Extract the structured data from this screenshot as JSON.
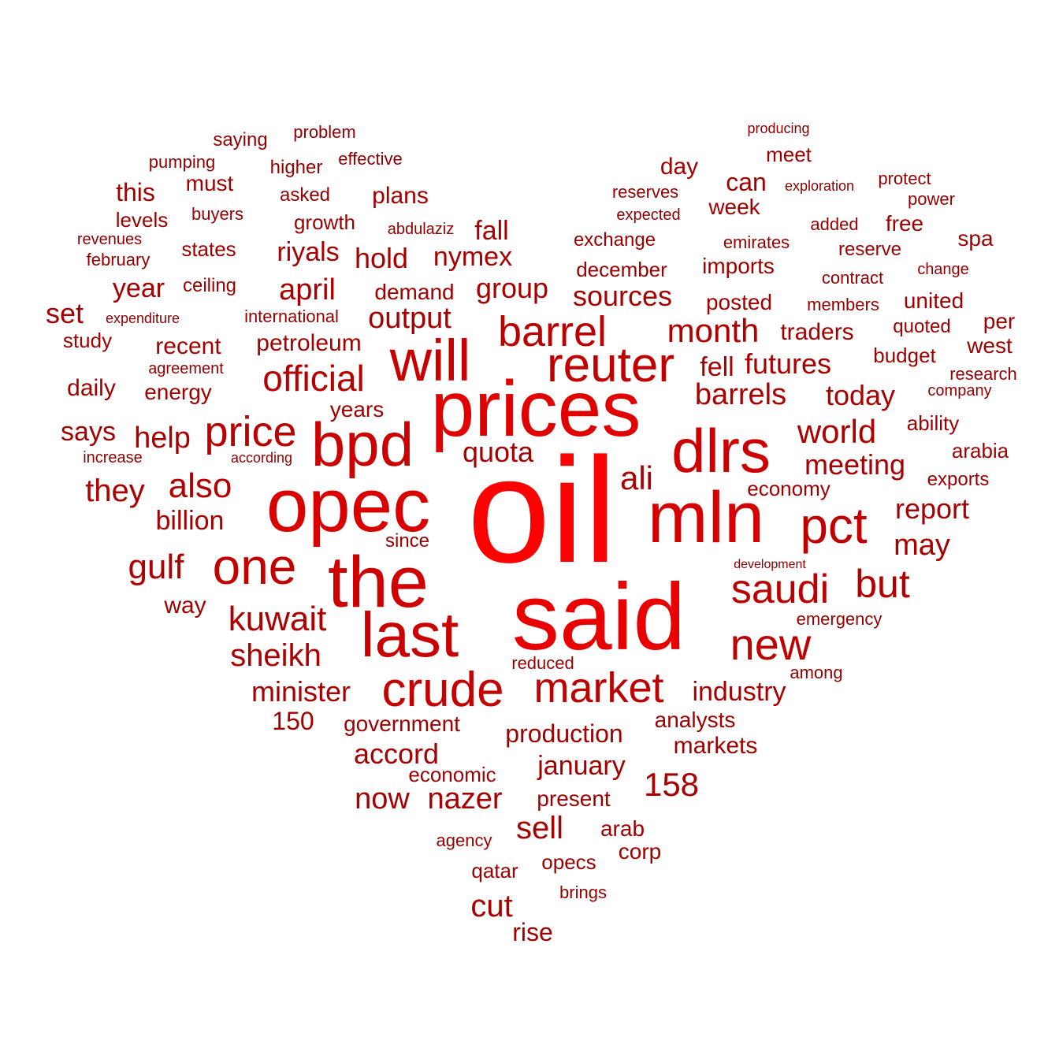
{
  "colors": {
    "background": "#ffffff",
    "darkest": "#8b0000",
    "brightest": "#ff0000"
  },
  "words": [
    {
      "text": "oil",
      "weight": 1.0
    },
    {
      "text": "said",
      "weight": 0.8
    },
    {
      "text": "prices",
      "weight": 0.72
    },
    {
      "text": "opec",
      "weight": 0.66
    },
    {
      "text": "mln",
      "weight": 0.64
    },
    {
      "text": "the",
      "weight": 0.6
    },
    {
      "text": "bpd",
      "weight": 0.56
    },
    {
      "text": "dlrs",
      "weight": 0.56
    },
    {
      "text": "last",
      "weight": 0.54
    },
    {
      "text": "will",
      "weight": 0.52
    },
    {
      "text": "crude",
      "weight": 0.5
    },
    {
      "text": "one",
      "weight": 0.48
    },
    {
      "text": "reuter",
      "weight": 0.46
    },
    {
      "text": "pct",
      "weight": 0.46
    },
    {
      "text": "market",
      "weight": 0.44
    },
    {
      "text": "new",
      "weight": 0.44
    },
    {
      "text": "price",
      "weight": 0.42
    },
    {
      "text": "barrel",
      "weight": 0.42
    },
    {
      "text": "saudi",
      "weight": 0.42
    },
    {
      "text": "official",
      "weight": 0.38
    },
    {
      "text": "also",
      "weight": 0.36
    },
    {
      "text": "but",
      "weight": 0.36
    },
    {
      "text": "kuwait",
      "weight": 0.34
    },
    {
      "text": "gulf",
      "weight": 0.34
    },
    {
      "text": "month",
      "weight": 0.34
    },
    {
      "text": "barrels",
      "weight": 0.32
    },
    {
      "text": "world",
      "weight": 0.32
    },
    {
      "text": "they",
      "weight": 0.32
    },
    {
      "text": "ali",
      "weight": 0.32
    },
    {
      "text": "sheikh",
      "weight": 0.32
    },
    {
      "text": "today",
      "weight": 0.3
    },
    {
      "text": "futures",
      "weight": 0.3
    },
    {
      "text": "help",
      "weight": 0.3
    },
    {
      "text": "billion",
      "weight": 0.28
    },
    {
      "text": "quota",
      "weight": 0.28
    },
    {
      "text": "output",
      "weight": 0.28
    },
    {
      "text": "april",
      "weight": 0.28
    },
    {
      "text": "may",
      "weight": 0.28
    },
    {
      "text": "report",
      "weight": 0.28
    },
    {
      "text": "meeting",
      "weight": 0.28
    },
    {
      "text": "group",
      "weight": 0.28
    },
    {
      "text": "sources",
      "weight": 0.28
    },
    {
      "text": "nymex",
      "weight": 0.28
    },
    {
      "text": "riyals",
      "weight": 0.28
    },
    {
      "text": "hold",
      "weight": 0.28
    },
    {
      "text": "minister",
      "weight": 0.28
    },
    {
      "text": "industry",
      "weight": 0.28
    },
    {
      "text": "accord",
      "weight": 0.28
    },
    {
      "text": "nazer",
      "weight": 0.28
    },
    {
      "text": "now",
      "weight": 0.28
    },
    {
      "text": "sell",
      "weight": 0.28
    },
    {
      "text": "cut",
      "weight": 0.28
    },
    {
      "text": "158",
      "weight": 0.28
    },
    {
      "text": "says",
      "weight": 0.26
    },
    {
      "text": "fell",
      "weight": 0.26
    },
    {
      "text": "year",
      "weight": 0.26
    },
    {
      "text": "set",
      "weight": 0.26
    },
    {
      "text": "this",
      "weight": 0.26
    },
    {
      "text": "fall",
      "weight": 0.26
    },
    {
      "text": "production",
      "weight": 0.24
    },
    {
      "text": "january",
      "weight": 0.24
    },
    {
      "text": "government",
      "weight": 0.24
    },
    {
      "text": "150",
      "weight": 0.24
    },
    {
      "text": "markets",
      "weight": 0.24
    },
    {
      "text": "recent",
      "weight": 0.24
    },
    {
      "text": "years",
      "weight": 0.24
    },
    {
      "text": "energy",
      "weight": 0.24
    },
    {
      "text": "daily",
      "weight": 0.24
    },
    {
      "text": "way",
      "weight": 0.24
    },
    {
      "text": "traders",
      "weight": 0.24
    },
    {
      "text": "plans",
      "weight": 0.24
    },
    {
      "text": "can",
      "weight": 0.24
    },
    {
      "text": "day",
      "weight": 0.24
    },
    {
      "text": "week",
      "weight": 0.24
    },
    {
      "text": "posted",
      "weight": 0.24
    },
    {
      "text": "imports",
      "weight": 0.24
    },
    {
      "text": "petroleum",
      "weight": 0.24
    },
    {
      "text": "demand",
      "weight": 0.24
    },
    {
      "text": "analysts",
      "weight": 0.24
    },
    {
      "text": "present",
      "weight": 0.24
    },
    {
      "text": "arab",
      "weight": 0.24
    },
    {
      "text": "rise",
      "weight": 0.24
    },
    {
      "text": "must",
      "weight": 0.22
    },
    {
      "text": "economy",
      "weight": 0.22
    },
    {
      "text": "free",
      "weight": 0.22
    },
    {
      "text": "spa",
      "weight": 0.22
    },
    {
      "text": "per",
      "weight": 0.22
    },
    {
      "text": "west",
      "weight": 0.22
    },
    {
      "text": "meet",
      "weight": 0.22
    },
    {
      "text": "states",
      "weight": 0.22
    },
    {
      "text": "study",
      "weight": 0.22
    },
    {
      "text": "ability",
      "weight": 0.22
    },
    {
      "text": "arabia",
      "weight": 0.22
    },
    {
      "text": "budget",
      "weight": 0.22
    },
    {
      "text": "united",
      "weight": 0.22
    },
    {
      "text": "economic",
      "weight": 0.22
    },
    {
      "text": "corp",
      "weight": 0.22
    },
    {
      "text": "levels",
      "weight": 0.2
    },
    {
      "text": "ceiling",
      "weight": 0.2
    },
    {
      "text": "growth",
      "weight": 0.2
    },
    {
      "text": "december",
      "weight": 0.2
    },
    {
      "text": "exchange",
      "weight": 0.2
    },
    {
      "text": "reserve",
      "weight": 0.2
    },
    {
      "text": "quoted",
      "weight": 0.2
    },
    {
      "text": "opecs",
      "weight": 0.2
    },
    {
      "text": "qatar",
      "weight": 0.2
    },
    {
      "text": "exports",
      "weight": 0.2
    },
    {
      "text": "since",
      "weight": 0.2
    },
    {
      "text": "saying",
      "weight": 0.18
    },
    {
      "text": "higher",
      "weight": 0.18
    },
    {
      "text": "asked",
      "weight": 0.18
    },
    {
      "text": "buyers",
      "weight": 0.18
    },
    {
      "text": "international",
      "weight": 0.18
    },
    {
      "text": "agreement",
      "weight": 0.18
    },
    {
      "text": "reserves",
      "weight": 0.18
    },
    {
      "text": "emirates",
      "weight": 0.18
    },
    {
      "text": "added",
      "weight": 0.18
    },
    {
      "text": "contract",
      "weight": 0.18
    },
    {
      "text": "members",
      "weight": 0.18
    },
    {
      "text": "power",
      "weight": 0.18
    },
    {
      "text": "protect",
      "weight": 0.18
    },
    {
      "text": "research",
      "weight": 0.18
    },
    {
      "text": "emergency",
      "weight": 0.18
    },
    {
      "text": "among",
      "weight": 0.18
    },
    {
      "text": "reduced",
      "weight": 0.18
    },
    {
      "text": "agency",
      "weight": 0.18
    },
    {
      "text": "brings",
      "weight": 0.18
    },
    {
      "text": "problem",
      "weight": 0.16
    },
    {
      "text": "pumping",
      "weight": 0.16
    },
    {
      "text": "effective",
      "weight": 0.16
    },
    {
      "text": "revenues",
      "weight": 0.16
    },
    {
      "text": "february",
      "weight": 0.16
    },
    {
      "text": "abdulaziz",
      "weight": 0.16
    },
    {
      "text": "expected",
      "weight": 0.16
    },
    {
      "text": "change",
      "weight": 0.16
    },
    {
      "text": "company",
      "weight": 0.16
    },
    {
      "text": "increase",
      "weight": 0.16
    },
    {
      "text": "according",
      "weight": 0.14
    },
    {
      "text": "expenditure",
      "weight": 0.14
    },
    {
      "text": "producing",
      "weight": 0.14
    },
    {
      "text": "exploration",
      "weight": 0.14
    },
    {
      "text": "development",
      "weight": 0.14
    }
  ]
}
